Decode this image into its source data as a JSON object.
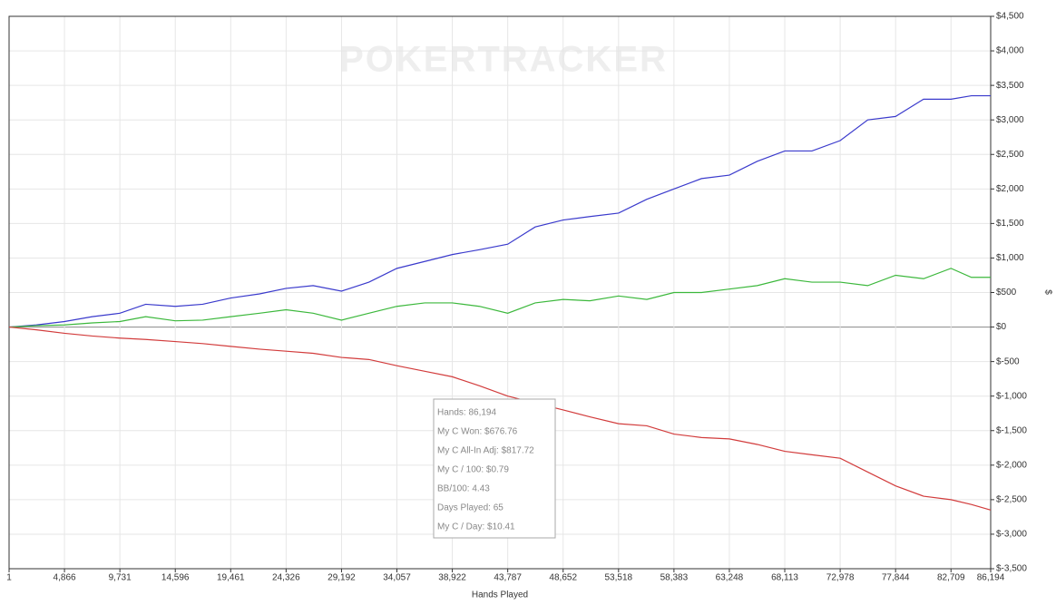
{
  "chart_data": {
    "type": "line",
    "watermark": "POKERTRACKER",
    "xlabel": "Hands Played",
    "ylabel": "$",
    "grid": true,
    "x": [
      1,
      2400,
      4866,
      7300,
      9731,
      12000,
      14596,
      17000,
      19461,
      22000,
      24326,
      26700,
      29192,
      31600,
      34057,
      36500,
      38922,
      41300,
      43787,
      46200,
      48652,
      51000,
      53518,
      56000,
      58383,
      60800,
      63248,
      65700,
      68113,
      70500,
      72978,
      75400,
      77844,
      80300,
      82709,
      84500,
      86194
    ],
    "series": [
      {
        "color": "#3a3acc",
        "values": [
          0,
          30,
          80,
          150,
          200,
          330,
          300,
          330,
          420,
          480,
          560,
          600,
          520,
          650,
          850,
          950,
          1050,
          1120,
          1200,
          1450,
          1550,
          1600,
          1650,
          1850,
          2000,
          2150,
          2200,
          2400,
          2550,
          2550,
          2700,
          3000,
          3050,
          3300,
          3300,
          3350,
          3350
        ]
      },
      {
        "color": "#3cb83c",
        "values": [
          0,
          20,
          30,
          60,
          80,
          150,
          90,
          100,
          150,
          200,
          250,
          200,
          100,
          200,
          300,
          350,
          350,
          300,
          200,
          350,
          400,
          380,
          450,
          400,
          500,
          500,
          550,
          600,
          700,
          650,
          650,
          600,
          750,
          700,
          850,
          720,
          720
        ]
      },
      {
        "color": "#d23c3c",
        "values": [
          0,
          -40,
          -90,
          -130,
          -160,
          -180,
          -210,
          -240,
          -280,
          -320,
          -350,
          -380,
          -440,
          -470,
          -560,
          -640,
          -720,
          -850,
          -1000,
          -1100,
          -1200,
          -1300,
          -1400,
          -1430,
          -1550,
          -1600,
          -1620,
          -1700,
          -1800,
          -1850,
          -1900,
          -2100,
          -2300,
          -2450,
          -2500,
          -2570,
          -2650
        ]
      }
    ],
    "xlim": [
      1,
      86194
    ],
    "xticks": [
      1,
      {
        "value": 4866,
        "label": "4,866"
      },
      {
        "value": 9731,
        "label": "9,731"
      },
      {
        "value": 14596,
        "label": "14,596"
      },
      {
        "value": 19461,
        "label": "19,461"
      },
      {
        "value": 24326,
        "label": "24,326"
      },
      {
        "value": 29192,
        "label": "29,192"
      },
      {
        "value": 34057,
        "label": "34,057"
      },
      {
        "value": 38922,
        "label": "38,922"
      },
      {
        "value": 43787,
        "label": "43,787"
      },
      {
        "value": 48652,
        "label": "48,652"
      },
      {
        "value": 53518,
        "label": "53,518"
      },
      {
        "value": 58383,
        "label": "58,383"
      },
      {
        "value": 63248,
        "label": "63,248"
      },
      {
        "value": 68113,
        "label": "68,113"
      },
      {
        "value": 72978,
        "label": "72,978"
      },
      {
        "value": 77844,
        "label": "77,844"
      },
      {
        "value": 82709,
        "label": "82,709"
      },
      {
        "value": 86194,
        "label": "86,194"
      }
    ],
    "ylim": [
      -3500,
      4500
    ],
    "yticks": [
      {
        "value": 4500,
        "label": "$4,500"
      },
      {
        "value": 4000,
        "label": "$4,000"
      },
      {
        "value": 3500,
        "label": "$3,500"
      },
      {
        "value": 3000,
        "label": "$3,000"
      },
      {
        "value": 2500,
        "label": "$2,500"
      },
      {
        "value": 2000,
        "label": "$2,000"
      },
      {
        "value": 1500,
        "label": "$1,500"
      },
      {
        "value": 1000,
        "label": "$1,000"
      },
      {
        "value": 500,
        "label": "$500"
      },
      {
        "value": 0,
        "label": "$0"
      },
      {
        "value": -500,
        "label": "$-500"
      },
      {
        "value": -1000,
        "label": "$-1,000"
      },
      {
        "value": -1500,
        "label": "$-1,500"
      },
      {
        "value": -2000,
        "label": "$-2,000"
      },
      {
        "value": -2500,
        "label": "$-2,500"
      },
      {
        "value": -3000,
        "label": "$-3,000"
      },
      {
        "value": -3500,
        "label": "$-3,500"
      }
    ],
    "tooltip": [
      "Hands: 86,194",
      "My C Won: $676.76",
      "My C All-In Adj: $817.72",
      "My C / 100: $0.79",
      "BB/100: 4.43",
      "Days Played: 65",
      "My C / Day: $10.41"
    ]
  }
}
